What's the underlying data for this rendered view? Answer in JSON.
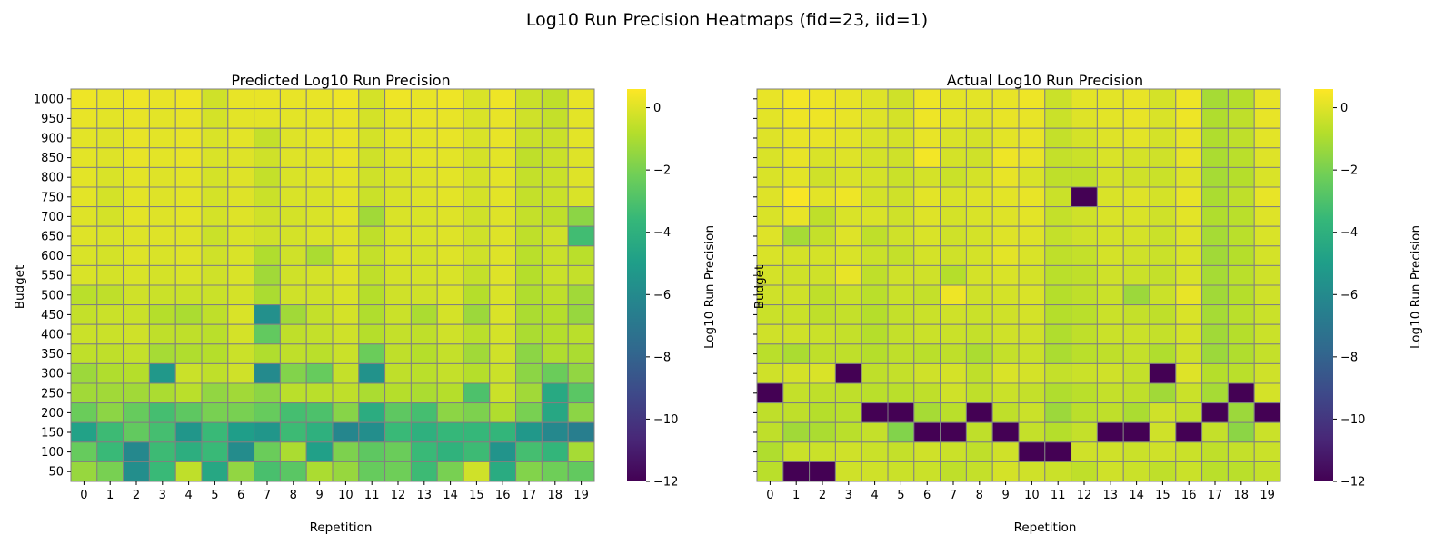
{
  "figure": {
    "suptitle": "Log10 Run Precision Heatmaps (fid=23, iid=1)"
  },
  "colorscale": {
    "name": "viridis",
    "stops": [
      "#440154",
      "#482878",
      "#3e4989",
      "#31688e",
      "#26828e",
      "#1f9e89",
      "#35b779",
      "#6ece58",
      "#b5de2b",
      "#fde725"
    ]
  },
  "chart_data": [
    {
      "type": "heatmap",
      "title": "Predicted Log10 Run Precision",
      "xlabel": "Repetition",
      "ylabel": "Budget",
      "x": [
        0,
        1,
        2,
        3,
        4,
        5,
        6,
        7,
        8,
        9,
        10,
        11,
        12,
        13,
        14,
        15,
        16,
        17,
        18,
        19
      ],
      "y": [
        1000,
        950,
        900,
        850,
        800,
        750,
        700,
        650,
        600,
        550,
        500,
        450,
        400,
        350,
        300,
        250,
        200,
        150,
        100,
        50
      ],
      "colorbar": {
        "label": "Log10 Run Precision",
        "range": [
          -12,
          0.6
        ],
        "ticks": [
          0,
          -2,
          -4,
          -6,
          -8,
          -10,
          -12
        ]
      },
      "grid": true,
      "values": [
        [
          0.3,
          0.2,
          0.3,
          0.2,
          0.3,
          -0.3,
          0.2,
          0.2,
          0.2,
          0.2,
          0.3,
          -0.2,
          0.3,
          0.2,
          0.3,
          -0.1,
          0.3,
          -0.4,
          -0.6,
          0.2
        ],
        [
          0.2,
          0.1,
          0.2,
          0.1,
          0.2,
          -0.2,
          0.1,
          0.1,
          0.1,
          0.1,
          0.2,
          -0.2,
          0.1,
          0.2,
          0.2,
          -0.1,
          0.2,
          -0.3,
          -0.5,
          0.1
        ],
        [
          0.1,
          0,
          0.2,
          0.1,
          0.2,
          -0.1,
          0.1,
          -0.5,
          0,
          0.1,
          0.2,
          -0.2,
          0.1,
          0.1,
          0.2,
          -0.1,
          0.2,
          -0.4,
          -0.4,
          0.1
        ],
        [
          0.1,
          0,
          0.2,
          0.1,
          0.2,
          -0.1,
          0,
          -0.3,
          0,
          0,
          0.2,
          -0.3,
          0,
          0.1,
          0.1,
          -0.2,
          0.1,
          -0.6,
          -0.4,
          0
        ],
        [
          0.1,
          -0.1,
          0.1,
          0,
          0.1,
          -0.2,
          0,
          -0.5,
          -0.1,
          0,
          0.1,
          -0.3,
          -0.1,
          0,
          0.1,
          -0.2,
          0.1,
          -0.5,
          -0.4,
          0
        ],
        [
          0.1,
          -0.2,
          0.1,
          0,
          0.1,
          -0.2,
          0,
          -0.4,
          -0.1,
          -0.1,
          0.1,
          -0.4,
          -0.1,
          0,
          0.1,
          -0.2,
          0.1,
          -0.5,
          -0.4,
          -0.1
        ],
        [
          0,
          -0.2,
          0.1,
          0,
          0.1,
          -0.2,
          0,
          -0.3,
          -0.2,
          -0.1,
          0.1,
          -1.2,
          -0.1,
          -0.1,
          0,
          -0.3,
          0,
          -0.5,
          -0.6,
          -1.6
        ],
        [
          0,
          -0.1,
          0,
          0,
          0,
          -0.4,
          -0.1,
          -0.3,
          -0.2,
          -0.1,
          0,
          -0.6,
          -0.1,
          -0.1,
          0,
          -0.3,
          0,
          -0.6,
          -0.3,
          -3.3
        ],
        [
          -0.1,
          -0.2,
          0,
          -0.1,
          0,
          -0.3,
          -0.1,
          -0.9,
          -0.3,
          -1.0,
          0,
          -0.5,
          -0.1,
          -0.2,
          0,
          -0.3,
          0,
          -0.7,
          -0.4,
          -0.7
        ],
        [
          -0.1,
          -0.2,
          -0.1,
          -0.2,
          -0.1,
          -0.3,
          -0.1,
          -1.2,
          -0.3,
          -0.2,
          0,
          -0.6,
          -0.2,
          -0.2,
          -0.1,
          -0.5,
          0,
          -0.8,
          -0.4,
          -0.5
        ],
        [
          -0.7,
          -0.6,
          -0.3,
          -0.4,
          -0.4,
          -0.4,
          -0.2,
          -1.0,
          -0.3,
          -0.3,
          -0.1,
          -0.8,
          -0.3,
          -0.3,
          -0.1,
          -0.8,
          -0.1,
          -0.9,
          -0.6,
          -1.2
        ],
        [
          -0.5,
          -0.4,
          -0.4,
          -0.8,
          -1.0,
          -0.6,
          -0.1,
          -5.7,
          -1.2,
          -0.5,
          -0.2,
          -0.9,
          -0.4,
          -1.0,
          -0.2,
          -1.3,
          -0.1,
          -1.0,
          -0.8,
          -1.4
        ],
        [
          -0.4,
          -0.4,
          -0.3,
          -0.6,
          -0.6,
          -0.7,
          -0.2,
          -2.5,
          -0.6,
          -0.5,
          -0.3,
          -0.8,
          -0.5,
          -0.6,
          -0.3,
          -0.7,
          -0.2,
          -1.0,
          -0.8,
          -0.7
        ],
        [
          -0.6,
          -0.6,
          -0.5,
          -1.1,
          -0.9,
          -0.8,
          -0.4,
          -0.9,
          -0.6,
          -0.7,
          -0.4,
          -2.3,
          -0.6,
          -0.8,
          -0.5,
          -1.2,
          -0.3,
          -1.6,
          -0.9,
          -1.0
        ],
        [
          -1.3,
          -0.9,
          -0.8,
          -5.3,
          -0.4,
          -0.6,
          -0.3,
          -6.0,
          -1.8,
          -2.4,
          -0.5,
          -5.6,
          -0.6,
          -0.7,
          -0.5,
          -0.8,
          -0.4,
          -1.6,
          -2.3,
          -1.5
        ],
        [
          -1.2,
          -1.2,
          -1.2,
          -1.0,
          -0.7,
          -1.5,
          -1.2,
          -1.6,
          -0.7,
          -0.7,
          -0.6,
          -1.0,
          -0.8,
          -1.0,
          -0.8,
          -3.0,
          -0.4,
          -1.2,
          -4.4,
          -2.7
        ],
        [
          -2.3,
          -1.6,
          -2.4,
          -3.2,
          -2.6,
          -2.0,
          -2.0,
          -2.4,
          -3.2,
          -3.0,
          -1.7,
          -4.2,
          -2.6,
          -3.2,
          -1.6,
          -1.9,
          -0.9,
          -2.0,
          -4.5,
          -1.6
        ],
        [
          -4.8,
          -3.4,
          -2.5,
          -3.2,
          -5.4,
          -3.5,
          -5.0,
          -5.4,
          -3.4,
          -4.0,
          -6.2,
          -5.8,
          -3.5,
          -4.0,
          -3.6,
          -3.6,
          -3.7,
          -5.3,
          -6.1,
          -6.6
        ],
        [
          -2.4,
          -3.5,
          -6.1,
          -3.4,
          -4.1,
          -3.5,
          -5.9,
          -2.3,
          -1.0,
          -4.9,
          -1.9,
          -2.6,
          -2.3,
          -3.5,
          -3.9,
          -3.4,
          -5.5,
          -3.2,
          -3.7,
          -1.1
        ],
        [
          -1.4,
          -2.0,
          -5.8,
          -3.5,
          -0.6,
          -4.5,
          -1.5,
          -3.1,
          -2.7,
          -1.0,
          -1.4,
          -2.4,
          -2.2,
          -3.4,
          -2.0,
          -0.3,
          -4.3,
          -1.8,
          -2.2,
          -2.5
        ]
      ]
    },
    {
      "type": "heatmap",
      "title": "Actual Log10 Run Precision",
      "xlabel": "Repetition",
      "ylabel": "Budget",
      "x": [
        0,
        1,
        2,
        3,
        4,
        5,
        6,
        7,
        8,
        9,
        10,
        11,
        12,
        13,
        14,
        15,
        16,
        17,
        18,
        19
      ],
      "y": [
        1000,
        950,
        900,
        850,
        800,
        750,
        700,
        650,
        600,
        550,
        500,
        450,
        400,
        350,
        300,
        250,
        200,
        150,
        100,
        50
      ],
      "colorbar": {
        "label": "Log10 Run Precision",
        "range": [
          -12,
          0.6
        ],
        "ticks": [
          0,
          -2,
          -4,
          -6,
          -8,
          -10,
          -12
        ]
      },
      "grid": true,
      "values": [
        [
          0.2,
          0.4,
          0.3,
          0.2,
          0,
          -0.3,
          0.3,
          0.1,
          0.1,
          0.2,
          0.3,
          -0.4,
          0.1,
          0.1,
          0.2,
          -0.2,
          0.3,
          -1.1,
          -0.8,
          0.2
        ],
        [
          0.1,
          0.3,
          0.3,
          0.2,
          0,
          -0.2,
          0.3,
          0.1,
          0,
          0.2,
          0.2,
          -0.4,
          0,
          0.1,
          0.2,
          -0.1,
          0.3,
          -0.9,
          -0.6,
          0.2
        ],
        [
          0,
          0.2,
          0.2,
          0.1,
          -0.1,
          -0.2,
          0.2,
          -0.1,
          -0.2,
          0.1,
          0.2,
          -0.5,
          -0.2,
          0,
          0.1,
          -0.2,
          0.2,
          -0.9,
          -0.6,
          0.1
        ],
        [
          -0.1,
          0.2,
          -0.1,
          0,
          -0.2,
          -0.3,
          0.4,
          -0.2,
          -0.3,
          0.3,
          0.2,
          -0.5,
          -0.4,
          -0.1,
          -0.2,
          -0.3,
          0.2,
          -1.0,
          -0.7,
          0
        ],
        [
          -0.1,
          0.1,
          -0.3,
          -0.1,
          -0.2,
          -0.4,
          -0.2,
          -0.4,
          -0.2,
          0.2,
          -0.1,
          -0.6,
          -0.6,
          -0.2,
          -0.3,
          -0.4,
          0,
          -1.1,
          -0.8,
          -0.1
        ],
        [
          0,
          0.5,
          0.1,
          0.3,
          -0.2,
          -0.3,
          0.1,
          -0.1,
          0,
          0.1,
          0.2,
          -0.4,
          -12,
          -0.1,
          0,
          -0.2,
          0.2,
          -1.0,
          -0.6,
          0.2
        ],
        [
          -0.1,
          0.2,
          -0.6,
          -0.1,
          -0.1,
          -0.3,
          0,
          -0.2,
          -0.1,
          0,
          0.1,
          -0.5,
          -0.3,
          -0.1,
          -0.1,
          -0.3,
          0.1,
          -0.9,
          -0.7,
          0
        ],
        [
          0,
          -1.1,
          -0.5,
          0,
          -0.6,
          -0.3,
          -0.1,
          -0.3,
          -0.2,
          0,
          0,
          -0.5,
          -0.3,
          -0.2,
          -0.2,
          -0.4,
          0,
          -1.1,
          -0.7,
          -0.1
        ],
        [
          -0.1,
          -0.2,
          -0.2,
          -0.1,
          -0.4,
          -0.5,
          -0.2,
          -0.3,
          -0.2,
          0.1,
          -0.1,
          -0.6,
          -0.5,
          -0.2,
          -0.3,
          -0.4,
          -0.1,
          -1.2,
          -0.8,
          -0.2
        ],
        [
          -0.2,
          -0.3,
          -0.3,
          0.2,
          -0.6,
          -0.3,
          -0.3,
          -0.8,
          -0.2,
          -0.1,
          -0.2,
          -0.7,
          -0.6,
          -0.3,
          -0.4,
          -0.5,
          -0.1,
          -1.1,
          -0.7,
          -0.3
        ],
        [
          -0.3,
          -0.3,
          -0.6,
          -0.4,
          -0.7,
          -0.4,
          -0.5,
          0.3,
          -0.3,
          -0.2,
          -0.1,
          -0.8,
          -0.6,
          -0.4,
          -1.3,
          -0.4,
          0.2,
          -1.2,
          -0.8,
          -0.3
        ],
        [
          -0.4,
          -0.4,
          -0.6,
          -0.5,
          -0.8,
          -0.5,
          -0.4,
          -0.3,
          -0.4,
          -0.3,
          -0.2,
          -0.8,
          -0.7,
          -0.4,
          -0.5,
          -0.6,
          -0.1,
          -1.1,
          -0.7,
          -0.4
        ],
        [
          -0.3,
          -0.3,
          -0.4,
          -0.5,
          -0.8,
          -0.5,
          -0.4,
          -0.4,
          -0.5,
          -0.3,
          -0.3,
          -0.9,
          -0.6,
          -0.4,
          -0.4,
          -0.5,
          -0.2,
          -1.2,
          -0.8,
          -0.4
        ],
        [
          -0.7,
          -1.0,
          -0.6,
          -0.6,
          -0.8,
          -0.6,
          -0.7,
          -0.6,
          -1.0,
          -0.5,
          -0.4,
          -1.0,
          -0.7,
          -0.6,
          -0.5,
          -0.9,
          -0.3,
          -1.3,
          -0.9,
          -0.5
        ],
        [
          -0.3,
          -0.2,
          -0.1,
          -12,
          -0.6,
          -0.5,
          -0.3,
          -0.2,
          -0.6,
          -0.1,
          -0.2,
          -0.5,
          -0.4,
          -0.3,
          -0.5,
          -12,
          0,
          -0.8,
          -0.7,
          -0.3
        ],
        [
          -12,
          -0.5,
          -0.6,
          -0.6,
          -0.7,
          -0.7,
          -0.6,
          -0.3,
          -0.6,
          -0.4,
          -0.5,
          -0.9,
          -0.7,
          -0.5,
          -0.6,
          -1.2,
          -0.4,
          -1.1,
          -12,
          -0.2
        ],
        [
          -0.6,
          -0.6,
          -0.8,
          -0.7,
          -12,
          -12,
          -1.1,
          -0.7,
          -12,
          -0.6,
          -0.4,
          -1.3,
          -0.7,
          -0.6,
          -1.0,
          -0.3,
          -0.5,
          -12,
          -1.3,
          -12
        ],
        [
          -0.6,
          -1.2,
          -1.0,
          -0.7,
          -0.5,
          -1.8,
          -12,
          -12,
          -0.6,
          -12,
          -0.5,
          -0.8,
          -0.5,
          -12,
          -12,
          -0.3,
          -12,
          -0.5,
          -1.6,
          -0.4
        ],
        [
          -0.9,
          -0.4,
          -0.4,
          -0.3,
          -0.4,
          -0.5,
          -0.3,
          -0.4,
          -0.6,
          -0.3,
          -12,
          -12,
          -0.3,
          -0.3,
          -0.4,
          -0.3,
          -0.4,
          -0.6,
          -0.5,
          -0.4
        ],
        [
          -0.7,
          -12,
          -12,
          -0.3,
          -0.3,
          -0.4,
          -0.4,
          -0.6,
          -0.5,
          -0.2,
          -0.3,
          -0.4,
          -0.6,
          -0.3,
          -0.4,
          -0.6,
          -0.4,
          -0.7,
          -0.7,
          -0.5
        ]
      ]
    }
  ]
}
